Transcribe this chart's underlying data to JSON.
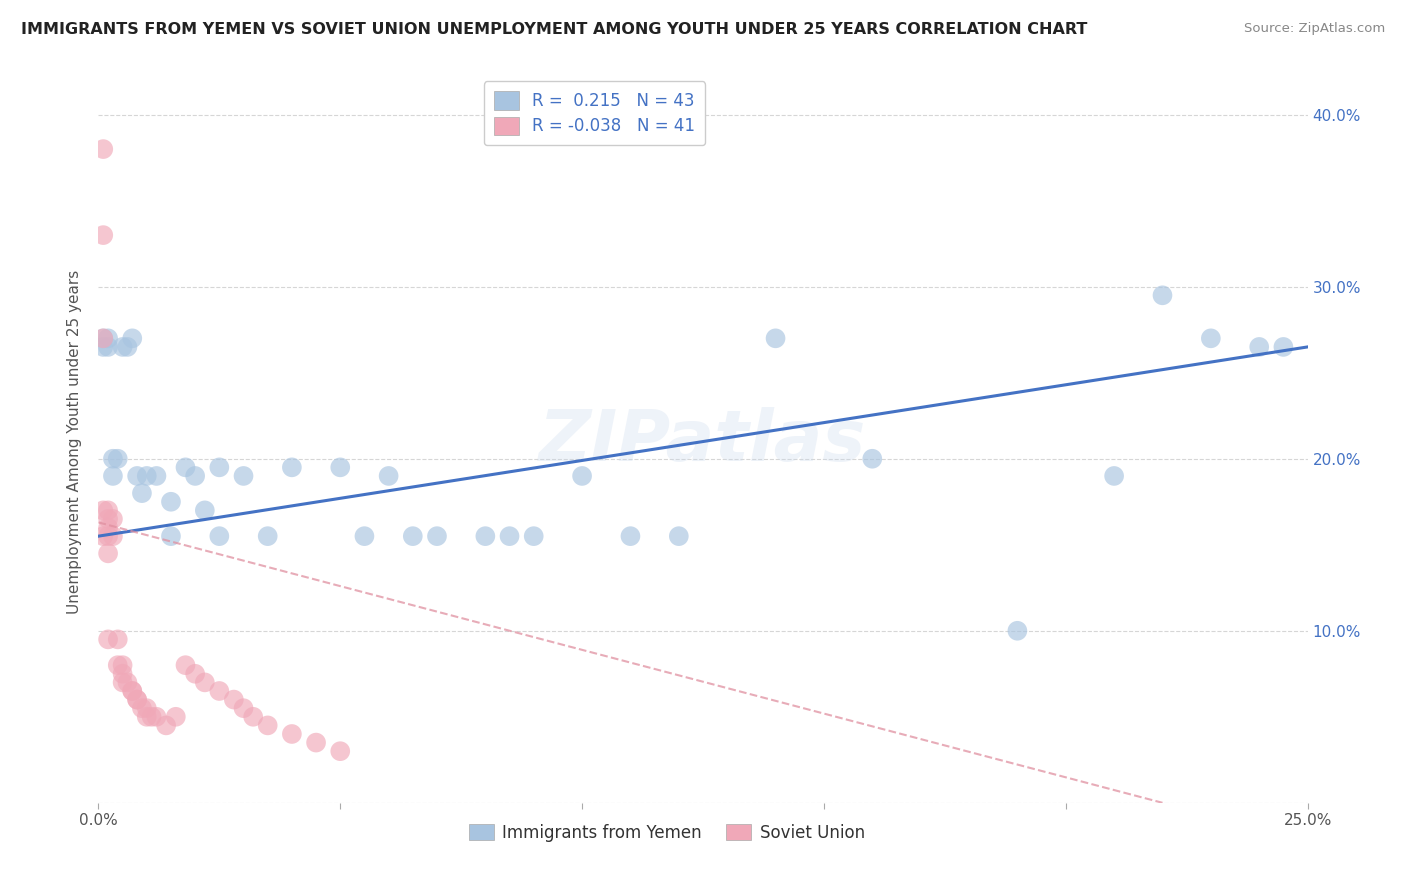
{
  "title": "IMMIGRANTS FROM YEMEN VS SOVIET UNION UNEMPLOYMENT AMONG YOUTH UNDER 25 YEARS CORRELATION CHART",
  "source": "Source: ZipAtlas.com",
  "ylabel": "Unemployment Among Youth under 25 years",
  "xlabel_blue": "Immigrants from Yemen",
  "xlabel_pink": "Soviet Union",
  "xlim": [
    0.0,
    0.25
  ],
  "ylim": [
    0.0,
    0.42
  ],
  "xticks": [
    0.0,
    0.05,
    0.1,
    0.15,
    0.2,
    0.25
  ],
  "xtick_labels": [
    "0.0%",
    "",
    "",
    "",
    "",
    "25.0%"
  ],
  "yticks": [
    0.0,
    0.1,
    0.2,
    0.3,
    0.4
  ],
  "ytick_labels_right": [
    "",
    "10.0%",
    "20.0%",
    "30.0%",
    "40.0%"
  ],
  "legend_blue_r": "0.215",
  "legend_blue_n": "43",
  "legend_pink_r": "-0.038",
  "legend_pink_n": "41",
  "blue_scatter_color": "#a8c4e0",
  "pink_scatter_color": "#f0a8b8",
  "line_blue_color": "#4472c4",
  "line_pink_color": "#e090a0",
  "tick_label_color": "#4472c4",
  "background": "#ffffff",
  "watermark": "ZIPatlas",
  "blue_x": [
    0.001,
    0.001,
    0.002,
    0.002,
    0.003,
    0.003,
    0.004,
    0.005,
    0.006,
    0.007,
    0.008,
    0.009,
    0.01,
    0.012,
    0.015,
    0.015,
    0.018,
    0.02,
    0.022,
    0.025,
    0.025,
    0.03,
    0.035,
    0.04,
    0.05,
    0.055,
    0.06,
    0.065,
    0.07,
    0.08,
    0.085,
    0.09,
    0.1,
    0.11,
    0.12,
    0.14,
    0.16,
    0.19,
    0.21,
    0.22,
    0.23,
    0.24,
    0.245
  ],
  "blue_y": [
    0.27,
    0.265,
    0.265,
    0.27,
    0.2,
    0.19,
    0.2,
    0.265,
    0.265,
    0.27,
    0.19,
    0.18,
    0.19,
    0.19,
    0.175,
    0.155,
    0.195,
    0.19,
    0.17,
    0.195,
    0.155,
    0.19,
    0.155,
    0.195,
    0.195,
    0.155,
    0.19,
    0.155,
    0.155,
    0.155,
    0.155,
    0.155,
    0.19,
    0.155,
    0.155,
    0.27,
    0.2,
    0.1,
    0.19,
    0.295,
    0.27,
    0.265,
    0.265
  ],
  "pink_x": [
    0.001,
    0.001,
    0.001,
    0.001,
    0.001,
    0.002,
    0.002,
    0.002,
    0.002,
    0.002,
    0.002,
    0.003,
    0.003,
    0.004,
    0.004,
    0.005,
    0.005,
    0.005,
    0.006,
    0.007,
    0.007,
    0.008,
    0.008,
    0.009,
    0.01,
    0.01,
    0.011,
    0.012,
    0.014,
    0.016,
    0.018,
    0.02,
    0.022,
    0.025,
    0.028,
    0.03,
    0.032,
    0.035,
    0.04,
    0.045,
    0.05
  ],
  "pink_y": [
    0.38,
    0.33,
    0.27,
    0.17,
    0.155,
    0.17,
    0.165,
    0.16,
    0.155,
    0.145,
    0.095,
    0.165,
    0.155,
    0.095,
    0.08,
    0.08,
    0.075,
    0.07,
    0.07,
    0.065,
    0.065,
    0.06,
    0.06,
    0.055,
    0.055,
    0.05,
    0.05,
    0.05,
    0.045,
    0.05,
    0.08,
    0.075,
    0.07,
    0.065,
    0.06,
    0.055,
    0.05,
    0.045,
    0.04,
    0.035,
    0.03
  ],
  "blue_line_x0": 0.0,
  "blue_line_y0": 0.155,
  "blue_line_x1": 0.25,
  "blue_line_y1": 0.265,
  "pink_line_x0": 0.0,
  "pink_line_y0": 0.163,
  "pink_line_x1": 0.22,
  "pink_line_y1": 0.0
}
